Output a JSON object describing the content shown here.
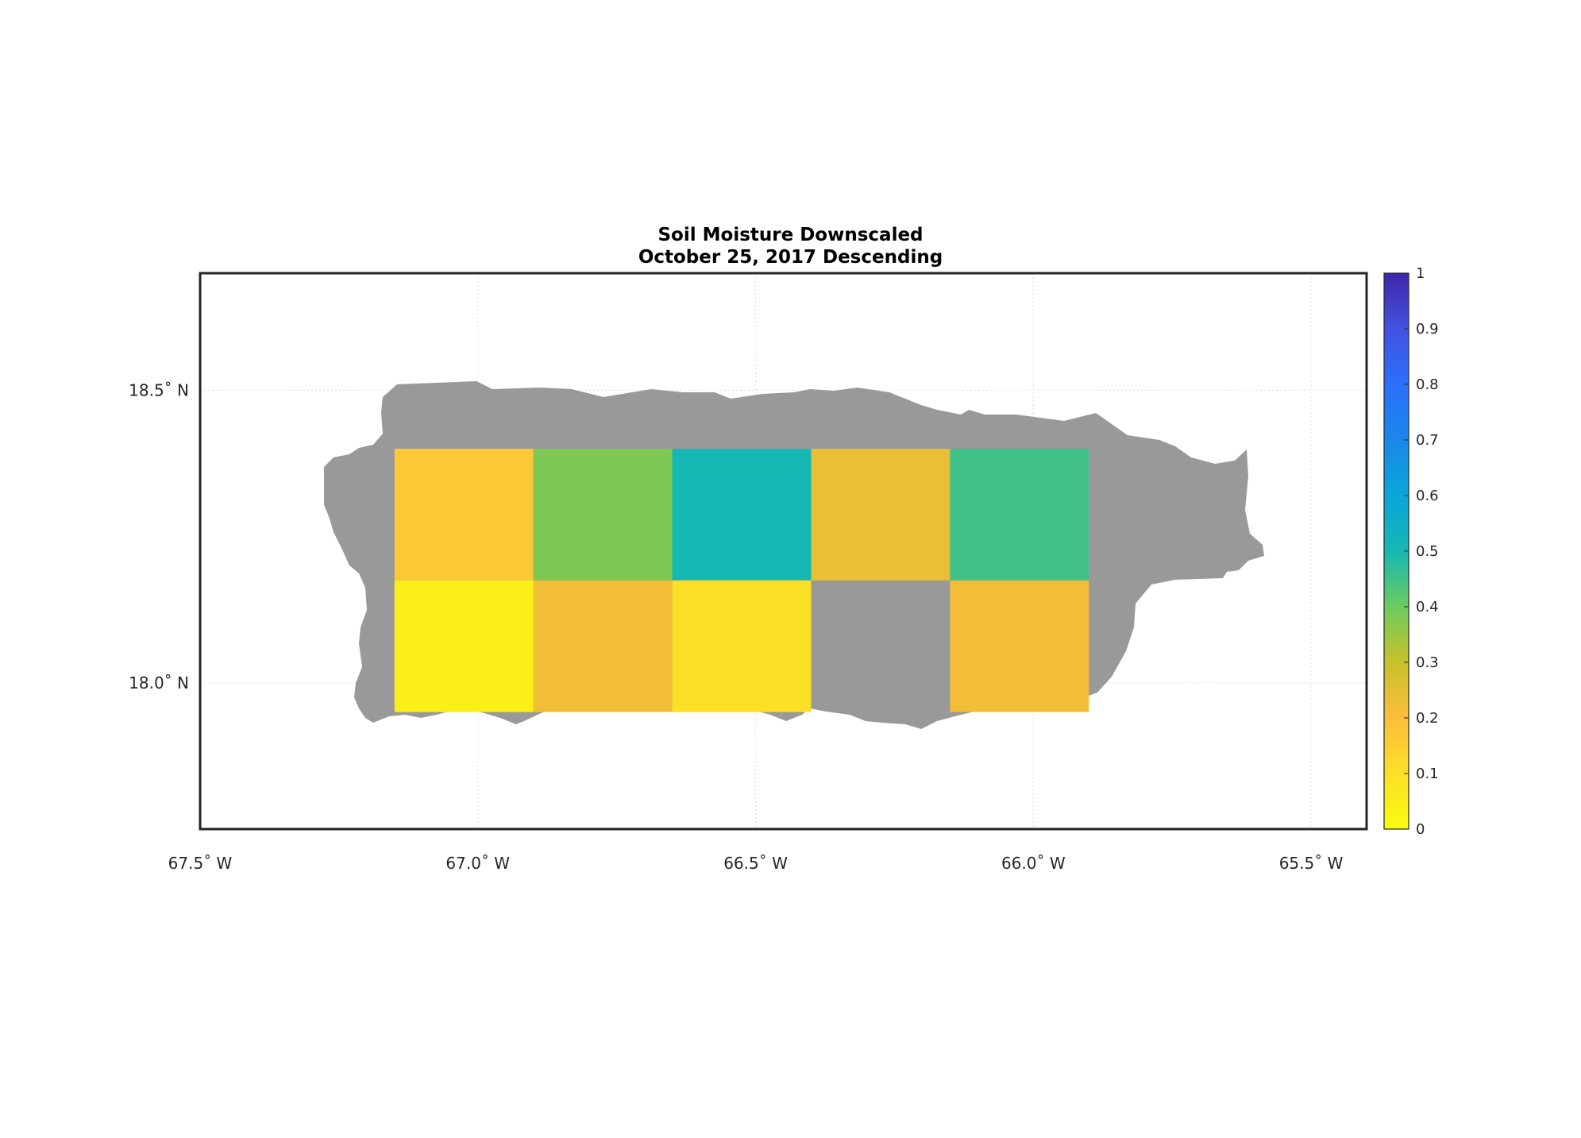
{
  "title": {
    "line1": "Soil Moisture Downscaled",
    "line2": "October 25, 2017 Descending"
  },
  "axes": {
    "lon_ticks": [
      {
        "value": -67.5,
        "label": "67.5˚ W"
      },
      {
        "value": -67.0,
        "label": "67.0˚ W"
      },
      {
        "value": -66.5,
        "label": "66.5˚ W"
      },
      {
        "value": -66.0,
        "label": "66.0˚ W"
      },
      {
        "value": -65.5,
        "label": "65.5˚ W"
      }
    ],
    "lat_ticks": [
      {
        "value": 18.5,
        "label": "18.5˚ N"
      },
      {
        "value": 18.0,
        "label": "18.0˚ N"
      }
    ],
    "lon_range": [
      -67.5,
      -65.4
    ],
    "lat_range": [
      17.75,
      18.7
    ],
    "grid": true
  },
  "colorbar": {
    "range": [
      0,
      1
    ],
    "ticks": [
      "0",
      "0.1",
      "0.2",
      "0.3",
      "0.4",
      "0.5",
      "0.6",
      "0.7",
      "0.8",
      "0.9",
      "1"
    ],
    "colormap": "parula"
  },
  "colors": {
    "land_no_data": "#999999",
    "frame": "#262626",
    "grid": "#dddddd"
  },
  "map_data": {
    "tiles": [
      {
        "lon": [
          -67.15,
          -66.9
        ],
        "lat": [
          18.175,
          18.4
        ],
        "value": 0.17
      },
      {
        "lon": [
          -66.9,
          -66.65
        ],
        "lat": [
          18.175,
          18.4
        ],
        "value": 0.38
      },
      {
        "lon": [
          -66.65,
          -66.4
        ],
        "lat": [
          18.175,
          18.4
        ],
        "value": 0.5
      },
      {
        "lon": [
          -66.4,
          -66.15
        ],
        "lat": [
          18.175,
          18.4
        ],
        "value": 0.24
      },
      {
        "lon": [
          -66.15,
          -65.9
        ],
        "lat": [
          18.175,
          18.4
        ],
        "value": 0.45
      },
      {
        "lon": [
          -67.15,
          -66.9
        ],
        "lat": [
          17.95,
          18.175
        ],
        "value": 0.04
      },
      {
        "lon": [
          -66.9,
          -66.65
        ],
        "lat": [
          17.95,
          18.175
        ],
        "value": 0.22
      },
      {
        "lon": [
          -66.65,
          -66.4
        ],
        "lat": [
          17.95,
          18.175
        ],
        "value": 0.1
      },
      {
        "lon": [
          -66.15,
          -65.9
        ],
        "lat": [
          17.95,
          18.175
        ],
        "value": 0.22
      }
    ]
  }
}
